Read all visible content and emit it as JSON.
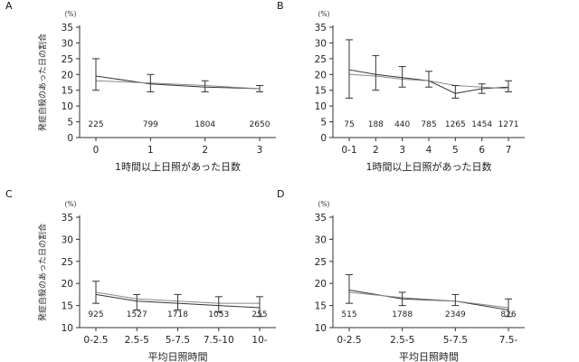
{
  "chart_data": [
    {
      "panel": "A",
      "type": "line",
      "unit_label": "(%)",
      "ylabel": "発症自殺のあった日の割合",
      "xlabel": "1時間以上日照があった日数",
      "categories": [
        "0",
        "1",
        "2",
        "3"
      ],
      "ylim": [
        0,
        35
      ],
      "yticks": [
        0,
        5,
        10,
        15,
        20,
        25,
        30,
        35
      ],
      "n_labels": [
        "225",
        "799",
        "1804",
        "2650"
      ],
      "series": [
        {
          "values": [
            19.5,
            17.0,
            16.0,
            15.5
          ],
          "lower": [
            15.0,
            14.5,
            14.5,
            14.5
          ],
          "upper": [
            25.0,
            20.0,
            18.0,
            16.5
          ]
        },
        {
          "values": [
            18.0,
            17.3,
            16.5,
            15.5
          ]
        }
      ]
    },
    {
      "panel": "B",
      "type": "line",
      "unit_label": "(%)",
      "ylabel": "",
      "xlabel": "1時間以上日照があった日数",
      "categories": [
        "0-1",
        "2",
        "3",
        "4",
        "5",
        "6",
        "7"
      ],
      "ylim": [
        0,
        35
      ],
      "yticks": [
        0,
        5,
        10,
        15,
        20,
        25,
        30,
        35
      ],
      "n_labels": [
        "75",
        "188",
        "440",
        "785",
        "1265",
        "1454",
        "1271"
      ],
      "series": [
        {
          "values": [
            21.5,
            20.0,
            19.0,
            18.0,
            14.0,
            15.5,
            16.0
          ],
          "lower": [
            12.5,
            15.0,
            16.0,
            16.0,
            12.5,
            14.0,
            14.5
          ],
          "upper": [
            31.0,
            26.0,
            22.5,
            21.0,
            16.5,
            17.0,
            18.0
          ]
        },
        {
          "values": [
            20.0,
            19.5,
            18.5,
            18.0,
            16.5,
            16.0,
            15.5
          ]
        }
      ]
    },
    {
      "panel": "C",
      "type": "line",
      "unit_label": "(%)",
      "ylabel": "発症自殺のあった日の割合",
      "xlabel": "平均日照時間",
      "categories": [
        "0-2.5",
        "2.5-5",
        "5-7.5",
        "7.5-10",
        "10-"
      ],
      "ylim": [
        10,
        35
      ],
      "yticks": [
        10,
        15,
        20,
        25,
        30,
        35
      ],
      "n_labels": [
        "925",
        "1527",
        "1718",
        "1053",
        "255"
      ],
      "series": [
        {
          "values": [
            17.5,
            16.0,
            15.5,
            15.0,
            14.5
          ],
          "lower": [
            15.5,
            14.0,
            14.0,
            13.5,
            12.5
          ],
          "upper": [
            20.5,
            17.5,
            17.5,
            17.0,
            17.0
          ]
        },
        {
          "values": [
            18.0,
            16.5,
            16.0,
            15.5,
            15.5
          ]
        }
      ]
    },
    {
      "panel": "D",
      "type": "line",
      "unit_label": "(%)",
      "ylabel": "",
      "xlabel": "平均日照時間",
      "categories": [
        "0-2.5",
        "2.5-5",
        "5-7.5",
        "7.5-"
      ],
      "ylim": [
        10,
        35
      ],
      "yticks": [
        10,
        15,
        20,
        25,
        30,
        35
      ],
      "n_labels": [
        "515",
        "1788",
        "2349",
        "826"
      ],
      "series": [
        {
          "values": [
            18.5,
            16.5,
            16.0,
            14.0
          ],
          "lower": [
            15.5,
            15.0,
            15.0,
            12.5
          ],
          "upper": [
            22.0,
            18.0,
            17.5,
            16.5
          ]
        },
        {
          "values": [
            18.0,
            16.8,
            16.0,
            14.5
          ]
        }
      ]
    }
  ]
}
